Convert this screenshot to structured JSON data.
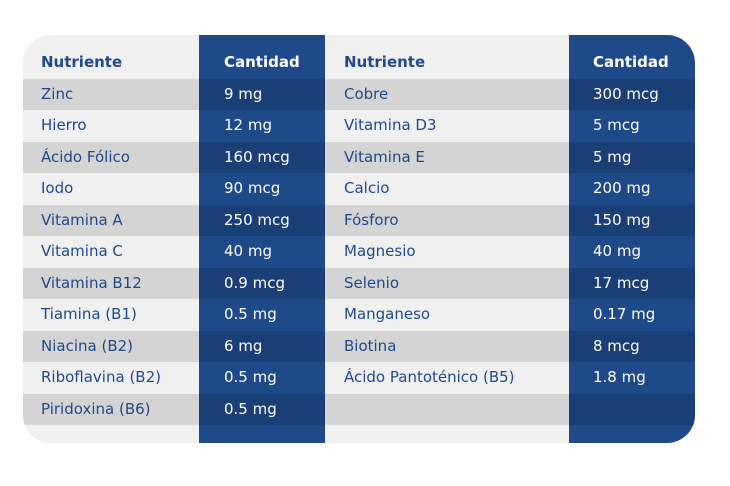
{
  "table": {
    "headers": [
      "Nutriente",
      "Cantidad",
      "Nutriente",
      "Cantidad"
    ],
    "rows": [
      [
        "Zinc",
        "9 mg",
        "Cobre",
        "300 mcg"
      ],
      [
        "Hierro",
        "12 mg",
        "Vitamina D3",
        "5 mcg"
      ],
      [
        "Ácido Fólico",
        "160 mcg",
        "Vitamina E",
        "5 mg"
      ],
      [
        "Iodo",
        "90 mcg",
        "Calcio",
        "200 mg"
      ],
      [
        "Vitamina A",
        "250 mcg",
        "Fósforo",
        "150 mg"
      ],
      [
        "Vitamina C",
        "40 mg",
        "Magnesio",
        "40 mg"
      ],
      [
        "Vitamina B12",
        "0.9 mcg",
        "Selenio",
        "17 mcg"
      ],
      [
        "Tiamina (B1)",
        "0.5 mg",
        "Manganeso",
        "0.17 mg"
      ],
      [
        "Niacina (B2)",
        "6 mg",
        "Biotina",
        "8 mcg"
      ],
      [
        "Riboflavina (B2)",
        "0.5 mg",
        "Ácido Pantoténico (B5)",
        "1.8 mg"
      ],
      [
        "Piridoxina (B6)",
        "0.5 mg",
        "",
        ""
      ]
    ]
  },
  "colors": {
    "navy": "#1f4a8a",
    "navy_shade": "#1a3f76",
    "light_bg": "#f0f0f0",
    "light_shade": "#d4d4d4",
    "text_blue": "#1f4a8a"
  }
}
